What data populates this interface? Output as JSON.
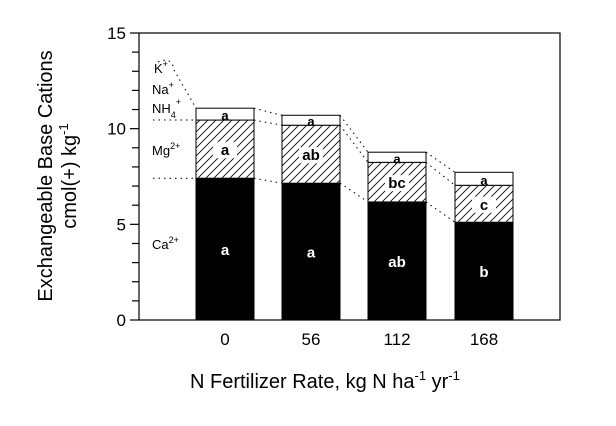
{
  "chart_data": {
    "type": "stacked-bar",
    "xlabel": "N Fertilizer Rate, kg N ha",
    "xlabel_sup1": "-1",
    "xlabel_mid": " yr",
    "xlabel_sup2": "-1",
    "ylabel_line1": "Exchangeable Base Cations",
    "ylabel_line2": "cmol(+) kg",
    "ylabel_sup": "-1",
    "ylim": [
      0,
      15
    ],
    "yticks": [
      "0",
      "5",
      "10",
      "15"
    ],
    "categories": [
      "0",
      "56",
      "112",
      "168"
    ],
    "series": [
      {
        "name": "Ca2+",
        "label_base": "Ca",
        "label_sup": "2+",
        "fill": "solid-black",
        "values": [
          7.41,
          7.15,
          6.17,
          5.11
        ],
        "letters": [
          "a",
          "a",
          "ab",
          "b"
        ]
      },
      {
        "name": "Mg2+",
        "label_base": "Mg",
        "label_sup": "2+",
        "fill": "hatched",
        "values": [
          3.04,
          3.03,
          2.07,
          1.93
        ],
        "letters": [
          "a",
          "ab",
          "bc",
          "c"
        ]
      },
      {
        "name": "K+ Na+ NH4+",
        "fill": "white",
        "values": [
          0.62,
          0.52,
          0.53,
          0.68
        ],
        "letters": [
          "a",
          "a",
          "a",
          "a"
        ]
      }
    ],
    "top_labels": {
      "k": "K",
      "k_sup": "+",
      "na": "Na",
      "na_sup": "+",
      "nh": "NH",
      "nh_sub": "4",
      "nh_sup": "+"
    },
    "grid": false
  }
}
